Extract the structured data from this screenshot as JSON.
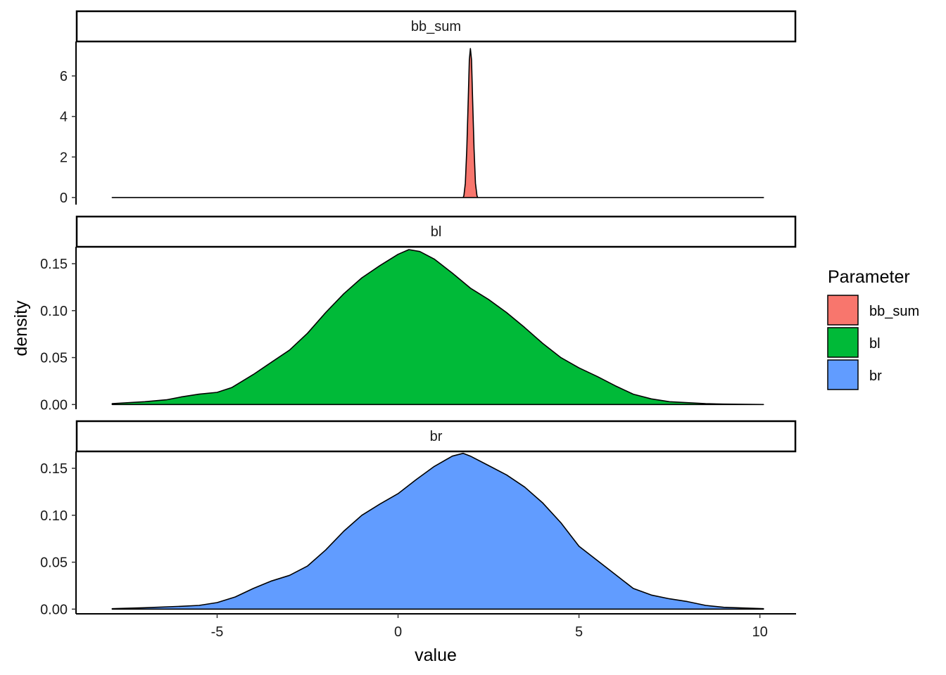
{
  "chart_data": {
    "type": "area",
    "subtype": "faceted density plot",
    "xlabel": "value",
    "ylabel": "density",
    "xlim": [
      -8.9,
      11.0
    ],
    "xticks": [
      -5,
      0,
      5,
      10
    ],
    "xtick_labels": [
      "-5",
      "0",
      "5",
      "10"
    ],
    "grid": false,
    "legend": {
      "title": "Parameter",
      "position": "right",
      "entries": [
        {
          "label": "bb_sum",
          "color": "#F8766D"
        },
        {
          "label": "bl",
          "color": "#00BA38"
        },
        {
          "label": "br",
          "color": "#619CFF"
        }
      ]
    },
    "panels": [
      {
        "strip": "bb_sum",
        "color": "#F8766D",
        "ylim": [
          -0.35,
          7.7
        ],
        "yticks": [
          0,
          2,
          4,
          6
        ],
        "ytick_labels": [
          "0",
          "2",
          "4",
          "6"
        ],
        "x": [
          -7.9,
          1.8,
          1.82,
          1.86,
          1.9,
          1.94,
          1.97,
          2.0,
          2.03,
          2.06,
          2.1,
          2.14,
          2.18,
          2.2,
          10.1
        ],
        "y": [
          0,
          0,
          0.1,
          0.7,
          2.4,
          4.9,
          6.8,
          7.35,
          6.8,
          4.9,
          2.4,
          0.7,
          0.1,
          0,
          0
        ]
      },
      {
        "strip": "bl",
        "color": "#00BA38",
        "ylim": [
          -0.005,
          0.168
        ],
        "yticks": [
          0,
          0.05,
          0.1,
          0.15
        ],
        "ytick_labels": [
          "0.00",
          "0.05",
          "0.10",
          "0.15"
        ],
        "x": [
          -7.9,
          -7,
          -6.4,
          -6,
          -5.5,
          -5,
          -4.6,
          -4,
          -3.5,
          -3,
          -2.5,
          -2,
          -1.5,
          -1,
          -0.5,
          0,
          0.3,
          0.6,
          1,
          1.5,
          2,
          2.5,
          3,
          3.5,
          4,
          4.5,
          5,
          5.5,
          6,
          6.5,
          7,
          7.5,
          8,
          8.5,
          9,
          10.1
        ],
        "y": [
          0.001,
          0.003,
          0.005,
          0.008,
          0.011,
          0.013,
          0.018,
          0.032,
          0.045,
          0.058,
          0.076,
          0.098,
          0.118,
          0.135,
          0.148,
          0.16,
          0.165,
          0.163,
          0.155,
          0.14,
          0.124,
          0.112,
          0.098,
          0.082,
          0.065,
          0.05,
          0.039,
          0.03,
          0.02,
          0.011,
          0.006,
          0.003,
          0.002,
          0.001,
          0.0005,
          0
        ]
      },
      {
        "strip": "br",
        "color": "#619CFF",
        "ylim": [
          -0.005,
          0.168
        ],
        "yticks": [
          0,
          0.05,
          0.1,
          0.15
        ],
        "ytick_labels": [
          "0.00",
          "0.05",
          "0.10",
          "0.15"
        ],
        "x": [
          -7.9,
          -7,
          -6,
          -5.5,
          -5,
          -4.5,
          -4,
          -3.5,
          -3,
          -2.5,
          -2,
          -1.5,
          -1,
          -0.5,
          0,
          0.5,
          1,
          1.5,
          1.8,
          2,
          2.5,
          3,
          3.5,
          4,
          4.5,
          5,
          5.5,
          6,
          6.5,
          7,
          7.5,
          8,
          8.5,
          9,
          10.1
        ],
        "y": [
          0.0005,
          0.0015,
          0.003,
          0.004,
          0.007,
          0.013,
          0.022,
          0.03,
          0.036,
          0.046,
          0.063,
          0.083,
          0.1,
          0.112,
          0.123,
          0.138,
          0.152,
          0.163,
          0.166,
          0.163,
          0.153,
          0.143,
          0.13,
          0.113,
          0.092,
          0.067,
          0.052,
          0.037,
          0.022,
          0.015,
          0.011,
          0.008,
          0.004,
          0.002,
          0.0005
        ]
      }
    ]
  }
}
